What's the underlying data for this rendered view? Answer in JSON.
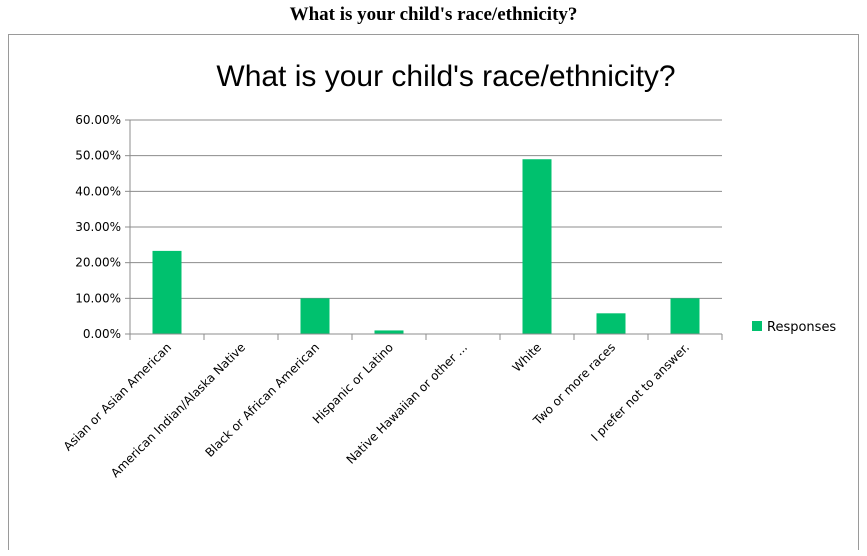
{
  "page": {
    "heading": "What is your child's race/ethnicity?"
  },
  "chart_data": {
    "type": "bar",
    "title": "What is your child's race/ethnicity?",
    "categories": [
      "Asian or Asian American",
      "American Indian/Alaska Native",
      "Black or African American",
      "Hispanic or Latino",
      "Native Hawaiian or other ...",
      "White",
      "Two or more races",
      "I prefer not to answer."
    ],
    "series": [
      {
        "name": "Responses",
        "values": [
          23.3,
          0,
          10.0,
          1.0,
          0,
          49.0,
          5.8,
          10.0
        ],
        "color": "#00c16e"
      }
    ],
    "ylim": [
      0,
      60
    ],
    "yticks": [
      "0.00%",
      "10.00%",
      "20.00%",
      "30.00%",
      "40.00%",
      "50.00%",
      "60.00%"
    ],
    "grid": true,
    "legend_position": "right"
  }
}
